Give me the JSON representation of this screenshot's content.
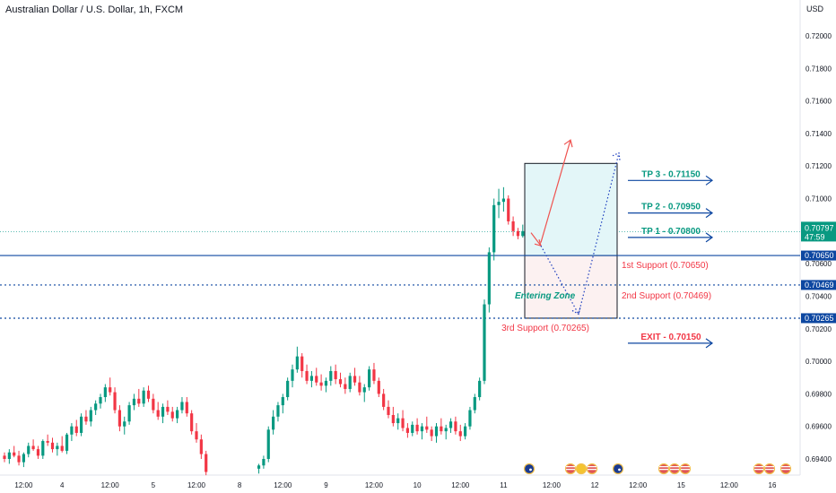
{
  "header": {
    "title": "Australian Dollar / U.S. Dollar, 1h, FXCM",
    "currency": "USD"
  },
  "chart_data": {
    "type": "candlestick",
    "ylim": [
      0.6932,
      0.7222
    ],
    "xlim": [
      0,
      168
    ],
    "y_ticks": [
      "0.72000",
      "0.71800",
      "0.71600",
      "0.71400",
      "0.71200",
      "0.71000",
      "0.70800",
      "0.70600",
      "0.70400",
      "0.70200",
      "0.70000",
      "0.69800",
      "0.69600",
      "0.69400"
    ],
    "x_ticks": [
      {
        "label": "12:00",
        "x": 4
      },
      {
        "label": "4",
        "x": 12
      },
      {
        "label": "12:00",
        "x": 22
      },
      {
        "label": "5",
        "x": 31
      },
      {
        "label": "12:00",
        "x": 40
      },
      {
        "label": "8",
        "x": 49
      },
      {
        "label": "12:00",
        "x": 58
      },
      {
        "label": "9",
        "x": 67
      },
      {
        "label": "12:00",
        "x": 77
      },
      {
        "label": "10",
        "x": 86
      },
      {
        "label": "12:00",
        "x": 95
      },
      {
        "label": "11",
        "x": 104
      },
      {
        "label": "12:00",
        "x": 114
      },
      {
        "label": "12",
        "x": 123
      },
      {
        "label": "12:00",
        "x": 132
      },
      {
        "label": "15",
        "x": 141
      },
      {
        "label": "12:00",
        "x": 151
      },
      {
        "label": "16",
        "x": 160
      }
    ],
    "last_price": "0.70797",
    "countdown": "47:59",
    "colors": {
      "up": "#089981",
      "down": "#f23645",
      "line": "#0d47a1",
      "price_line": "#26a69a"
    },
    "candles": [
      [
        0,
        0.6942,
        0.6944,
        0.6938,
        0.694
      ],
      [
        1,
        0.694,
        0.6946,
        0.6937,
        0.6944
      ],
      [
        2,
        0.6944,
        0.6948,
        0.6941,
        0.6942
      ],
      [
        3,
        0.6942,
        0.6945,
        0.6936,
        0.6938
      ],
      [
        4,
        0.6938,
        0.6944,
        0.6935,
        0.6943
      ],
      [
        5,
        0.6943,
        0.695,
        0.6941,
        0.6948
      ],
      [
        6,
        0.6948,
        0.6952,
        0.6945,
        0.6946
      ],
      [
        7,
        0.6946,
        0.6948,
        0.694,
        0.6942
      ],
      [
        8,
        0.6942,
        0.6952,
        0.694,
        0.6951
      ],
      [
        9,
        0.6951,
        0.6955,
        0.6948,
        0.695
      ],
      [
        10,
        0.695,
        0.6953,
        0.6944,
        0.6946
      ],
      [
        11,
        0.6946,
        0.695,
        0.6942,
        0.6948
      ],
      [
        12,
        0.6948,
        0.6954,
        0.6944,
        0.6945
      ],
      [
        13,
        0.6945,
        0.6956,
        0.6943,
        0.6955
      ],
      [
        14,
        0.6955,
        0.6962,
        0.6951,
        0.696
      ],
      [
        15,
        0.696,
        0.6964,
        0.6954,
        0.6956
      ],
      [
        16,
        0.6956,
        0.6968,
        0.6954,
        0.6966
      ],
      [
        17,
        0.6966,
        0.697,
        0.6961,
        0.6963
      ],
      [
        18,
        0.6963,
        0.6972,
        0.696,
        0.697
      ],
      [
        19,
        0.697,
        0.6976,
        0.6967,
        0.6974
      ],
      [
        20,
        0.6974,
        0.698,
        0.6971,
        0.6978
      ],
      [
        21,
        0.6978,
        0.6986,
        0.6975,
        0.6984
      ],
      [
        22,
        0.6984,
        0.699,
        0.6979,
        0.6981
      ],
      [
        23,
        0.6981,
        0.6984,
        0.6968,
        0.697
      ],
      [
        24,
        0.697,
        0.6973,
        0.6957,
        0.696
      ],
      [
        25,
        0.696,
        0.6966,
        0.6955,
        0.6963
      ],
      [
        26,
        0.6963,
        0.6975,
        0.6961,
        0.6973
      ],
      [
        27,
        0.6973,
        0.698,
        0.697,
        0.6977
      ],
      [
        28,
        0.6977,
        0.6983,
        0.6972,
        0.6974
      ],
      [
        29,
        0.6974,
        0.6984,
        0.6972,
        0.6982
      ],
      [
        30,
        0.6982,
        0.6985,
        0.6975,
        0.6977
      ],
      [
        31,
        0.6977,
        0.698,
        0.6968,
        0.697
      ],
      [
        32,
        0.697,
        0.6975,
        0.6964,
        0.6966
      ],
      [
        33,
        0.6966,
        0.6974,
        0.6962,
        0.6972
      ],
      [
        34,
        0.6972,
        0.6976,
        0.6967,
        0.6969
      ],
      [
        35,
        0.6969,
        0.6972,
        0.6963,
        0.6965
      ],
      [
        36,
        0.6965,
        0.6972,
        0.6962,
        0.697
      ],
      [
        37,
        0.697,
        0.6978,
        0.6968,
        0.6975
      ],
      [
        38,
        0.6975,
        0.6978,
        0.6966,
        0.6968
      ],
      [
        39,
        0.6968,
        0.697,
        0.6955,
        0.6957
      ],
      [
        40,
        0.6957,
        0.6962,
        0.695,
        0.6952
      ],
      [
        41,
        0.6952,
        0.6955,
        0.694,
        0.6943
      ],
      [
        42,
        0.6943,
        0.6945,
        0.693,
        0.6932
      ],
      [
        53,
        0.6934,
        0.6937,
        0.6931,
        0.6936
      ],
      [
        54,
        0.6936,
        0.6942,
        0.6934,
        0.694
      ],
      [
        55,
        0.694,
        0.696,
        0.6938,
        0.6958
      ],
      [
        56,
        0.6958,
        0.697,
        0.6955,
        0.6966
      ],
      [
        57,
        0.6966,
        0.6975,
        0.6963,
        0.6973
      ],
      [
        58,
        0.6973,
        0.698,
        0.6968,
        0.6978
      ],
      [
        59,
        0.6978,
        0.699,
        0.6976,
        0.6988
      ],
      [
        60,
        0.6988,
        0.6998,
        0.6984,
        0.6995
      ],
      [
        61,
        0.6995,
        0.7009,
        0.6993,
        0.7003
      ],
      [
        62,
        0.7003,
        0.7005,
        0.699,
        0.6994
      ],
      [
        63,
        0.6994,
        0.6998,
        0.6986,
        0.6988
      ],
      [
        64,
        0.6988,
        0.6994,
        0.6984,
        0.6991
      ],
      [
        65,
        0.6991,
        0.6996,
        0.6985,
        0.6987
      ],
      [
        66,
        0.6987,
        0.6992,
        0.6982,
        0.6985
      ],
      [
        67,
        0.6985,
        0.699,
        0.6981,
        0.6988
      ],
      [
        68,
        0.6988,
        0.6997,
        0.6985,
        0.6994
      ],
      [
        69,
        0.6994,
        0.6998,
        0.6986,
        0.6989
      ],
      [
        70,
        0.6989,
        0.6993,
        0.6984,
        0.6986
      ],
      [
        71,
        0.6986,
        0.699,
        0.698,
        0.6983
      ],
      [
        72,
        0.6983,
        0.6993,
        0.6981,
        0.6991
      ],
      [
        73,
        0.6991,
        0.6996,
        0.6985,
        0.6987
      ],
      [
        74,
        0.6987,
        0.6991,
        0.6979,
        0.6981
      ],
      [
        75,
        0.6981,
        0.6986,
        0.6975,
        0.6984
      ],
      [
        76,
        0.6984,
        0.6997,
        0.6982,
        0.6995
      ],
      [
        77,
        0.6995,
        0.6999,
        0.6986,
        0.6988
      ],
      [
        78,
        0.6988,
        0.699,
        0.6978,
        0.698
      ],
      [
        79,
        0.698,
        0.6983,
        0.697,
        0.6972
      ],
      [
        80,
        0.6972,
        0.6976,
        0.6965,
        0.6967
      ],
      [
        81,
        0.6967,
        0.6972,
        0.696,
        0.6962
      ],
      [
        82,
        0.6962,
        0.6968,
        0.6958,
        0.6965
      ],
      [
        83,
        0.6965,
        0.697,
        0.6957,
        0.6959
      ],
      [
        84,
        0.6959,
        0.6962,
        0.6953,
        0.6956
      ],
      [
        85,
        0.6956,
        0.6963,
        0.6954,
        0.6961
      ],
      [
        86,
        0.6961,
        0.6965,
        0.6955,
        0.6957
      ],
      [
        87,
        0.6957,
        0.6962,
        0.6952,
        0.696
      ],
      [
        88,
        0.696,
        0.6966,
        0.6956,
        0.6958
      ],
      [
        89,
        0.6958,
        0.696,
        0.6951,
        0.6954
      ],
      [
        90,
        0.6954,
        0.6962,
        0.695,
        0.696
      ],
      [
        91,
        0.696,
        0.6965,
        0.6955,
        0.6957
      ],
      [
        92,
        0.6957,
        0.6961,
        0.6952,
        0.6959
      ],
      [
        93,
        0.6959,
        0.6965,
        0.6956,
        0.6963
      ],
      [
        94,
        0.6963,
        0.6966,
        0.6955,
        0.6957
      ],
      [
        95,
        0.6957,
        0.6961,
        0.6951,
        0.6954
      ],
      [
        96,
        0.6954,
        0.6962,
        0.6952,
        0.696
      ],
      [
        97,
        0.696,
        0.6972,
        0.6958,
        0.697
      ],
      [
        98,
        0.697,
        0.698,
        0.6968,
        0.6978
      ],
      [
        99,
        0.6978,
        0.699,
        0.6976,
        0.6988
      ],
      [
        100,
        0.6988,
        0.7038,
        0.6986,
        0.7035
      ],
      [
        101,
        0.7035,
        0.707,
        0.703,
        0.7067
      ],
      [
        102,
        0.7067,
        0.71,
        0.7062,
        0.7096
      ],
      [
        103,
        0.7096,
        0.7106,
        0.7088,
        0.7098
      ],
      [
        104,
        0.7098,
        0.7107,
        0.7092,
        0.71
      ],
      [
        105,
        0.71,
        0.7102,
        0.7084,
        0.7086
      ],
      [
        106,
        0.7086,
        0.7089,
        0.7077,
        0.708
      ],
      [
        107,
        0.708,
        0.7082,
        0.7075,
        0.7077
      ],
      [
        108,
        0.7077,
        0.7084,
        0.7076,
        0.708
      ]
    ]
  },
  "annotations": {
    "tp3": "TP 3 - 0.71150",
    "tp2": "TP 2 - 0.70950",
    "tp1": "TP 1 - 0.70800",
    "exit": "EXIT - 0.70150",
    "support1": "1st Support (0.70650)",
    "support2": "2nd Support (0.70469)",
    "support3": "3rd Support (0.70265)",
    "zone": "Entering Zone",
    "label_0.70650": "0.70650",
    "label_0.70469": "0.70469",
    "label_0.70265": "0.70265"
  },
  "events": [
    "au-flag-icon",
    "us-flag-icon",
    "eu-flag-icon",
    "au-flag-icon",
    "us-flag-icon",
    "us-flag-icon",
    "us-flag-icon",
    "us-flag-icon",
    "us-flag-icon"
  ]
}
